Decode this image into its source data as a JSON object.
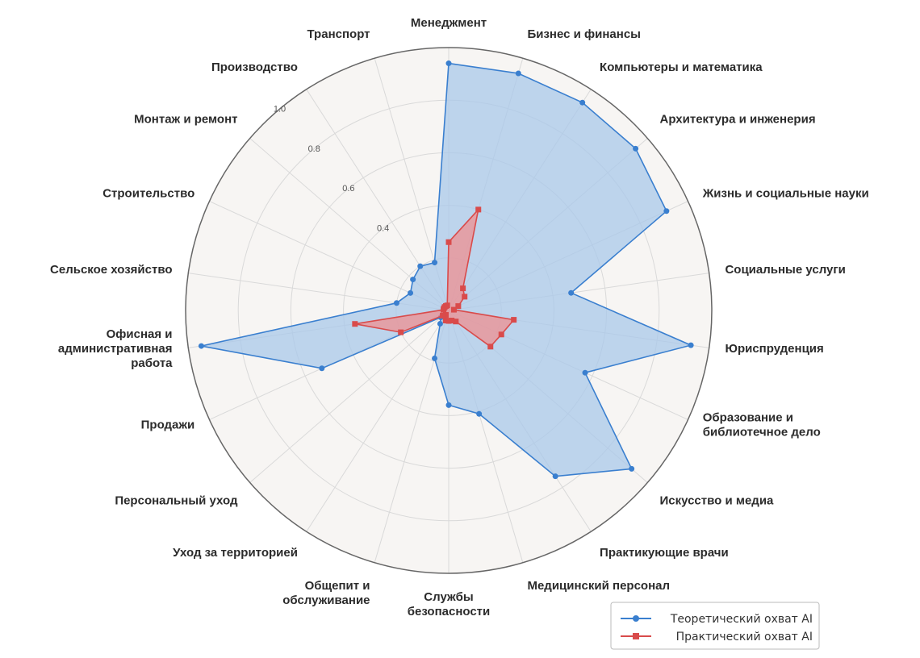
{
  "chart_data": {
    "type": "radar",
    "rlim": [
      0,
      1.0
    ],
    "r_ticks": [
      "0.4",
      "0.6",
      "0.8",
      "1.0"
    ],
    "grid": true,
    "legend_position": "bottom-right",
    "categories": [
      [
        "Менеджмент"
      ],
      [
        "Бизнес и финансы"
      ],
      [
        "Компьютеры и математика"
      ],
      [
        "Архитектура и инженерия"
      ],
      [
        "Жизнь и социальные науки"
      ],
      [
        "Социальные услуги"
      ],
      [
        "Юриспруденция"
      ],
      [
        "Образование и",
        "библиотечное дело"
      ],
      [
        "Искусство и медиа"
      ],
      [
        "Практикующие врачи"
      ],
      [
        "Медицинский персонал"
      ],
      [
        "Службы",
        "безопасности"
      ],
      [
        "Общепит и",
        "обслуживание"
      ],
      [
        "Уход за территорией"
      ],
      [
        "Персональный уход"
      ],
      [
        "Продажи"
      ],
      [
        "Офисная и",
        "административная",
        "работа"
      ],
      [
        "Сельское хозяйство"
      ],
      [
        "Строительство"
      ],
      [
        "Монтаж и ремонт"
      ],
      [
        "Производство"
      ],
      [
        "Транспорт"
      ]
    ],
    "series": [
      {
        "name": "Теоретический охват AI",
        "color": "#3a7fcf",
        "fill": "#a9c8ea",
        "marker": "circle",
        "values": [
          0.94,
          0.94,
          0.94,
          0.94,
          0.91,
          0.47,
          0.93,
          0.57,
          0.92,
          0.75,
          0.41,
          0.36,
          0.19,
          0.06,
          0.04,
          0.53,
          0.95,
          0.2,
          0.16,
          0.18,
          0.2,
          0.19
        ]
      },
      {
        "name": "Практический охват AI",
        "color": "#d94b4b",
        "fill": "#f28c8c",
        "marker": "square",
        "values": [
          0.26,
          0.4,
          0.1,
          0.08,
          0.04,
          0.02,
          0.25,
          0.22,
          0.21,
          0.05,
          0.04,
          0.04,
          0.04,
          0.02,
          0.03,
          0.2,
          0.36,
          0.02,
          0.02,
          0.02,
          0.02,
          0.02
        ]
      }
    ]
  }
}
